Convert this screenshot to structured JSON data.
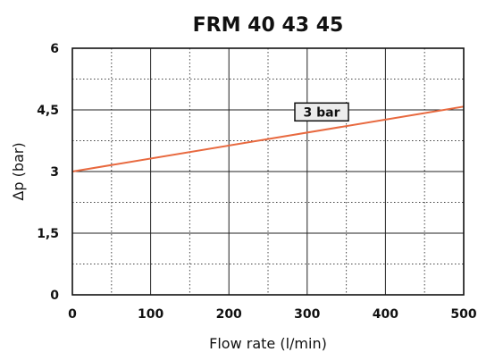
{
  "chart_data": {
    "type": "line",
    "title": "FRM 40 43 45",
    "xlabel": "Flow rate (l/min)",
    "ylabel": "Δp (bar)",
    "xlim": [
      0,
      500
    ],
    "ylim": [
      0,
      6
    ],
    "x_ticks": [
      "0",
      "100",
      "200",
      "300",
      "400",
      "500"
    ],
    "y_ticks": [
      "0",
      "1,5",
      "3",
      "4,5",
      "6"
    ],
    "grid": true,
    "series": [
      {
        "name": "3 bar",
        "x": [
          0,
          500
        ],
        "y": [
          3.0,
          4.58
        ],
        "color": "#e8693f"
      }
    ],
    "annotations": [
      {
        "text": "3 bar",
        "x": 250,
        "y": 4.45
      }
    ]
  }
}
